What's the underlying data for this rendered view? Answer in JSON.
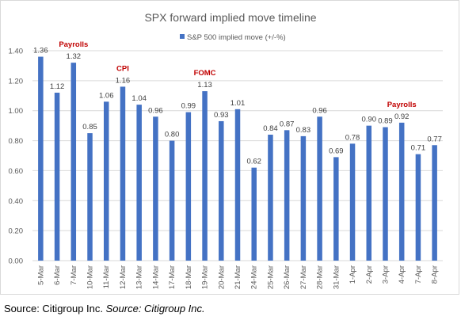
{
  "chart_data": {
    "type": "bar",
    "title": "SPX forward implied move timeline",
    "legend": {
      "label": "S&P 500 implied move (+/-%)",
      "position": "top"
    },
    "series": [
      {
        "name": "S&P 500 implied move (+/-%)",
        "color": "#4472c4",
        "values": [
          1.36,
          1.12,
          1.32,
          0.85,
          1.06,
          1.16,
          1.04,
          0.96,
          0.8,
          0.99,
          1.13,
          0.93,
          1.01,
          0.62,
          0.84,
          0.87,
          0.83,
          0.96,
          0.69,
          0.78,
          0.9,
          0.89,
          0.92,
          0.71,
          0.77
        ],
        "value_labels": [
          "1.36",
          "1.12",
          "1.32",
          "0.85",
          "1.06",
          "1.16",
          "1.04",
          "0.96",
          "0.80",
          "0.99",
          "1.13",
          "0.93",
          "1.01",
          "0.62",
          "0.84",
          "0.87",
          "0.83",
          "0.96",
          "0.69",
          "0.78",
          "0.90",
          "0.89",
          "0.92",
          "0.71",
          "0.77"
        ]
      }
    ],
    "categories": [
      "5-Mar",
      "6-Mar",
      "7-Mar",
      "10-Mar",
      "11-Mar",
      "12-Mar",
      "13-Mar",
      "14-Mar",
      "17-Mar",
      "18-Mar",
      "19-Mar",
      "20-Mar",
      "21-Mar",
      "24-Mar",
      "25-Mar",
      "26-Mar",
      "27-Mar",
      "28-Mar",
      "31-Mar",
      "1-Apr",
      "2-Apr",
      "3-Apr",
      "4-Apr",
      "7-Apr",
      "8-Apr"
    ],
    "ylim": [
      0,
      1.4
    ],
    "yticks": [
      "0.00",
      "0.20",
      "0.40",
      "0.60",
      "0.80",
      "1.00",
      "1.20",
      "1.40"
    ],
    "grid": true,
    "annotations": [
      {
        "text": "Payrolls",
        "category": "7-Mar",
        "color": "#c00000"
      },
      {
        "text": "CPI",
        "category": "12-Mar",
        "color": "#c00000"
      },
      {
        "text": "FOMC",
        "category": "19-Mar",
        "color": "#c00000"
      },
      {
        "text": "Payrolls",
        "category": "4-Apr",
        "color": "#c00000"
      }
    ]
  },
  "source": {
    "prefix": "Source: Citigroup Inc. ",
    "italic": "Source: Citigroup Inc."
  }
}
